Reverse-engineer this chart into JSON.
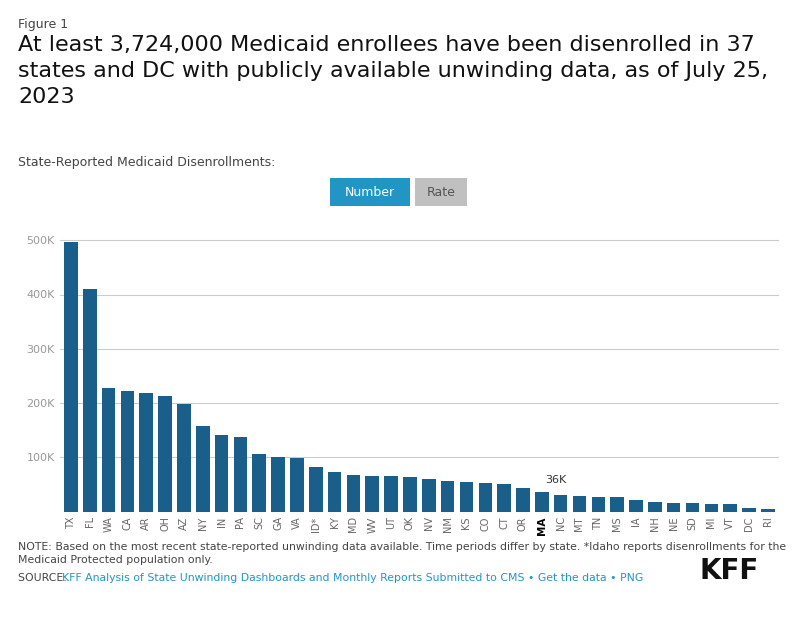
{
  "figure_label": "Figure 1",
  "title_line1": "At least 3,724,000 Medicaid enrollees have been disenrolled in 37",
  "title_line2": "states and DC with publicly available unwinding data, as of July 25,",
  "title_line3": "2023",
  "subtitle": "State-Reported Medicaid Disenrollments:",
  "states": [
    "TX",
    "FL",
    "WA",
    "CA",
    "AR",
    "OH",
    "AZ",
    "NY",
    "IN",
    "PA",
    "SC",
    "GA",
    "VA",
    "ID*",
    "KY",
    "MD",
    "WV",
    "UT",
    "OK",
    "NV",
    "NM",
    "KS",
    "CO",
    "CT",
    "OR",
    "MA",
    "NC",
    "MT",
    "TN",
    "MS",
    "IA",
    "NH",
    "NE",
    "SD",
    "MI",
    "VT",
    "DC",
    "RI"
  ],
  "values": [
    497000,
    410000,
    228000,
    222000,
    218000,
    212000,
    198000,
    157000,
    141000,
    137000,
    106000,
    100000,
    99000,
    82000,
    72000,
    68000,
    66000,
    65000,
    63000,
    60000,
    57000,
    54000,
    53000,
    50000,
    43000,
    36000,
    31000,
    28000,
    27000,
    27000,
    22000,
    17000,
    16000,
    15000,
    14000,
    13000,
    7000,
    5000
  ],
  "bar_color": "#1a5e8a",
  "annotated_bar": "MA",
  "annotated_value": "36K",
  "ylim": [
    0,
    520000
  ],
  "yticks": [
    0,
    100000,
    200000,
    300000,
    400000,
    500000
  ],
  "ytick_labels": [
    "",
    "100K",
    "200K",
    "300K",
    "400K",
    "500K"
  ],
  "background_color": "#ffffff",
  "note_text": "NOTE: Based on the most recent state-reported unwinding data available. Time periods differ by state. *Idaho reports disenrollments for the\nMedicaid Protected population only.",
  "source_prefix": "SOURCE: ",
  "source_link": "KFF Analysis of State Unwinding Dashboards and Monthly Reports Submitted to CMS",
  "source_sep": " • ",
  "source_data": "Get the data",
  "source_sep2": " • ",
  "source_png": "PNG",
  "kff_text": "KFF",
  "button_number_text": "Number",
  "button_rate_text": "Rate",
  "btn_num_color": "#2196c4",
  "btn_rate_color": "#c0c0c0",
  "grid_color": "#cccccc",
  "tick_color": "#999999",
  "title_fontsize": 16,
  "subtitle_fontsize": 9,
  "fig_label_fontsize": 9,
  "note_fontsize": 7.8,
  "source_fontsize": 7.8,
  "axis_tick_fontsize": 8,
  "bar_label_fontsize": 8
}
